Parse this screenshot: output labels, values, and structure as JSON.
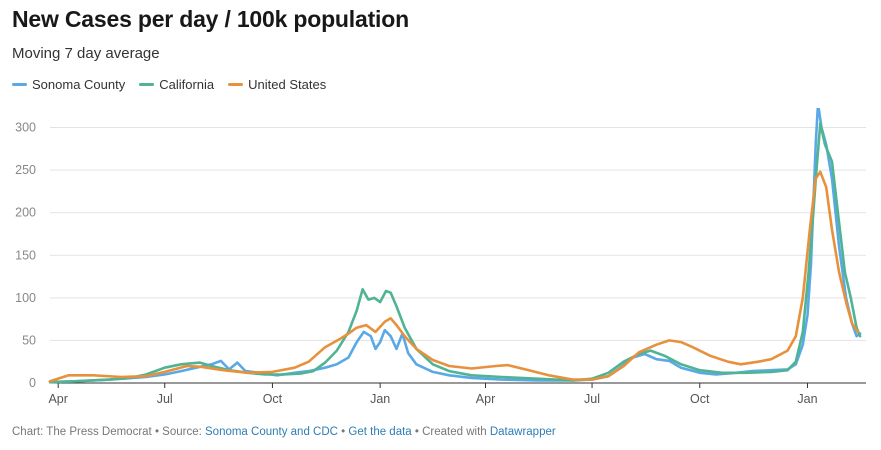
{
  "chart_data": {
    "type": "line",
    "title": "New Cases per day / 100k population",
    "subtitle": "Moving 7 day average",
    "xlabel": "",
    "ylabel": "",
    "x_start": "2020-03-25",
    "x_end": "2022-02-20",
    "ylim": [
      0,
      330
    ],
    "yticks": [
      0,
      50,
      100,
      150,
      200,
      250,
      300
    ],
    "xticks": [
      {
        "date": "2020-04-01",
        "label": "Apr"
      },
      {
        "date": "2020-07-01",
        "label": "Jul"
      },
      {
        "date": "2020-10-01",
        "label": "Oct"
      },
      {
        "date": "2021-01-01",
        "label": "Jan"
      },
      {
        "date": "2021-04-01",
        "label": "Apr"
      },
      {
        "date": "2021-07-01",
        "label": "Jul"
      },
      {
        "date": "2021-10-01",
        "label": "Oct"
      },
      {
        "date": "2022-01-01",
        "label": "Jan"
      }
    ],
    "grid": true,
    "legend_position": "top-left",
    "series": [
      {
        "name": "Sonoma County",
        "color": "#5aa9e6",
        "points": [
          [
            "2020-03-25",
            1
          ],
          [
            "2020-04-15",
            2
          ],
          [
            "2020-05-15",
            4
          ],
          [
            "2020-06-15",
            7
          ],
          [
            "2020-07-01",
            10
          ],
          [
            "2020-07-15",
            14
          ],
          [
            "2020-07-31",
            19
          ],
          [
            "2020-08-10",
            22
          ],
          [
            "2020-08-18",
            26
          ],
          [
            "2020-08-25",
            16
          ],
          [
            "2020-09-01",
            24
          ],
          [
            "2020-09-08",
            14
          ],
          [
            "2020-09-20",
            12
          ],
          [
            "2020-10-05",
            9
          ],
          [
            "2020-10-20",
            12
          ],
          [
            "2020-11-01",
            14
          ],
          [
            "2020-11-15",
            18
          ],
          [
            "2020-11-25",
            22
          ],
          [
            "2020-12-05",
            30
          ],
          [
            "2020-12-12",
            48
          ],
          [
            "2020-12-18",
            60
          ],
          [
            "2020-12-24",
            55
          ],
          [
            "2020-12-28",
            40
          ],
          [
            "2021-01-01",
            48
          ],
          [
            "2021-01-05",
            62
          ],
          [
            "2021-01-10",
            55
          ],
          [
            "2021-01-15",
            40
          ],
          [
            "2021-01-20",
            58
          ],
          [
            "2021-01-25",
            35
          ],
          [
            "2021-02-01",
            22
          ],
          [
            "2021-02-15",
            13
          ],
          [
            "2021-03-01",
            9
          ],
          [
            "2021-03-20",
            6
          ],
          [
            "2021-04-15",
            4
          ],
          [
            "2021-05-15",
            3
          ],
          [
            "2021-06-15",
            3
          ],
          [
            "2021-07-01",
            4
          ],
          [
            "2021-07-15",
            8
          ],
          [
            "2021-07-25",
            18
          ],
          [
            "2021-08-05",
            30
          ],
          [
            "2021-08-15",
            34
          ],
          [
            "2021-08-25",
            28
          ],
          [
            "2021-09-05",
            26
          ],
          [
            "2021-09-15",
            18
          ],
          [
            "2021-10-01",
            12
          ],
          [
            "2021-10-15",
            10
          ],
          [
            "2021-11-01",
            12
          ],
          [
            "2021-11-15",
            14
          ],
          [
            "2021-12-01",
            15
          ],
          [
            "2021-12-15",
            16
          ],
          [
            "2021-12-22",
            22
          ],
          [
            "2021-12-28",
            45
          ],
          [
            "2022-01-01",
            80
          ],
          [
            "2022-01-04",
            140
          ],
          [
            "2022-01-08",
            280
          ],
          [
            "2022-01-10",
            328
          ],
          [
            "2022-01-13",
            300
          ],
          [
            "2022-01-17",
            280
          ],
          [
            "2022-01-22",
            240
          ],
          [
            "2022-01-28",
            160
          ],
          [
            "2022-02-03",
            100
          ],
          [
            "2022-02-08",
            70
          ],
          [
            "2022-02-12",
            55
          ],
          [
            "2022-02-15",
            58
          ]
        ]
      },
      {
        "name": "California",
        "color": "#4fb394",
        "points": [
          [
            "2020-03-25",
            1
          ],
          [
            "2020-04-15",
            2
          ],
          [
            "2020-05-15",
            4
          ],
          [
            "2020-06-01",
            6
          ],
          [
            "2020-06-15",
            10
          ],
          [
            "2020-07-01",
            18
          ],
          [
            "2020-07-15",
            22
          ],
          [
            "2020-07-31",
            24
          ],
          [
            "2020-08-10",
            20
          ],
          [
            "2020-08-25",
            15
          ],
          [
            "2020-09-10",
            12
          ],
          [
            "2020-09-25",
            10
          ],
          [
            "2020-10-10",
            10
          ],
          [
            "2020-10-25",
            11
          ],
          [
            "2020-11-05",
            14
          ],
          [
            "2020-11-15",
            24
          ],
          [
            "2020-11-25",
            38
          ],
          [
            "2020-12-05",
            60
          ],
          [
            "2020-12-12",
            85
          ],
          [
            "2020-12-17",
            110
          ],
          [
            "2020-12-22",
            98
          ],
          [
            "2020-12-27",
            100
          ],
          [
            "2021-01-01",
            95
          ],
          [
            "2021-01-06",
            108
          ],
          [
            "2021-01-10",
            106
          ],
          [
            "2021-01-15",
            90
          ],
          [
            "2021-01-22",
            65
          ],
          [
            "2021-02-01",
            40
          ],
          [
            "2021-02-15",
            22
          ],
          [
            "2021-03-01",
            14
          ],
          [
            "2021-03-20",
            9
          ],
          [
            "2021-04-15",
            7
          ],
          [
            "2021-05-15",
            5
          ],
          [
            "2021-06-15",
            3
          ],
          [
            "2021-07-01",
            5
          ],
          [
            "2021-07-15",
            12
          ],
          [
            "2021-07-28",
            25
          ],
          [
            "2021-08-10",
            34
          ],
          [
            "2021-08-20",
            38
          ],
          [
            "2021-09-01",
            32
          ],
          [
            "2021-09-15",
            22
          ],
          [
            "2021-10-01",
            15
          ],
          [
            "2021-10-20",
            12
          ],
          [
            "2021-11-10",
            12
          ],
          [
            "2021-12-01",
            13
          ],
          [
            "2021-12-15",
            15
          ],
          [
            "2021-12-22",
            25
          ],
          [
            "2021-12-28",
            60
          ],
          [
            "2022-01-02",
            130
          ],
          [
            "2022-01-06",
            200
          ],
          [
            "2022-01-09",
            255
          ],
          [
            "2022-01-12",
            305
          ],
          [
            "2022-01-16",
            280
          ],
          [
            "2022-01-22",
            260
          ],
          [
            "2022-01-27",
            200
          ],
          [
            "2022-02-02",
            130
          ],
          [
            "2022-02-07",
            100
          ],
          [
            "2022-02-12",
            65
          ],
          [
            "2022-02-15",
            55
          ]
        ]
      },
      {
        "name": "United States",
        "color": "#e8913c",
        "points": [
          [
            "2020-03-25",
            2
          ],
          [
            "2020-04-10",
            9
          ],
          [
            "2020-05-01",
            9
          ],
          [
            "2020-05-25",
            7
          ],
          [
            "2020-06-15",
            8
          ],
          [
            "2020-07-01",
            13
          ],
          [
            "2020-07-20",
            20
          ],
          [
            "2020-08-01",
            19
          ],
          [
            "2020-08-20",
            15
          ],
          [
            "2020-09-10",
            12
          ],
          [
            "2020-10-01",
            13
          ],
          [
            "2020-10-20",
            18
          ],
          [
            "2020-11-01",
            25
          ],
          [
            "2020-11-15",
            42
          ],
          [
            "2020-11-28",
            52
          ],
          [
            "2020-12-05",
            58
          ],
          [
            "2020-12-12",
            65
          ],
          [
            "2020-12-20",
            68
          ],
          [
            "2020-12-28",
            60
          ],
          [
            "2021-01-05",
            72
          ],
          [
            "2021-01-10",
            76
          ],
          [
            "2021-01-15",
            68
          ],
          [
            "2021-01-22",
            55
          ],
          [
            "2021-02-01",
            40
          ],
          [
            "2021-02-15",
            27
          ],
          [
            "2021-03-01",
            20
          ],
          [
            "2021-03-20",
            17
          ],
          [
            "2021-04-10",
            20
          ],
          [
            "2021-04-20",
            21
          ],
          [
            "2021-05-05",
            16
          ],
          [
            "2021-05-25",
            9
          ],
          [
            "2021-06-15",
            4
          ],
          [
            "2021-07-01",
            4
          ],
          [
            "2021-07-15",
            8
          ],
          [
            "2021-07-28",
            20
          ],
          [
            "2021-08-10",
            36
          ],
          [
            "2021-08-25",
            45
          ],
          [
            "2021-09-05",
            50
          ],
          [
            "2021-09-15",
            48
          ],
          [
            "2021-09-25",
            42
          ],
          [
            "2021-10-10",
            32
          ],
          [
            "2021-10-25",
            25
          ],
          [
            "2021-11-05",
            22
          ],
          [
            "2021-11-20",
            25
          ],
          [
            "2021-12-01",
            28
          ],
          [
            "2021-12-15",
            38
          ],
          [
            "2021-12-22",
            55
          ],
          [
            "2021-12-28",
            100
          ],
          [
            "2022-01-03",
            180
          ],
          [
            "2022-01-08",
            240
          ],
          [
            "2022-01-12",
            248
          ],
          [
            "2022-01-17",
            230
          ],
          [
            "2022-01-22",
            180
          ],
          [
            "2022-01-28",
            130
          ],
          [
            "2022-02-03",
            95
          ],
          [
            "2022-02-08",
            70
          ],
          [
            "2022-02-13",
            60
          ]
        ]
      }
    ]
  },
  "footer": {
    "prefix": "Chart: The Press Democrat • Source: ",
    "source_link": "Sonoma County and CDC",
    "sep1": " • ",
    "data_link": "Get the data",
    "sep2": " • Created with ",
    "tool_link": "Datawrapper"
  }
}
